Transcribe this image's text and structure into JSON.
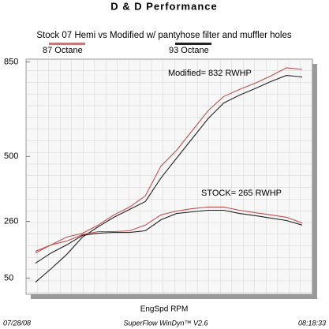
{
  "chart_data": {
    "type": "line",
    "title": "D & D Performance",
    "subtitle": "Stock 07 Hemi vs Modified w/ pantyhose filter and muffler holes",
    "x_label": "EngSpd RPM",
    "legend": [
      {
        "name": "87 Octane",
        "color": "#c87878"
      },
      {
        "name": "93 Octane",
        "color": "#222222"
      }
    ],
    "annotations": [
      "Modified= 832 RWHP",
      "STOCK= 265 RWHP"
    ],
    "footer": {
      "date": "07/28/08",
      "software": "SuperFlow WinDyn™ V2.6",
      "time": "08:18:33"
    },
    "ylim": [
      -10,
      860
    ],
    "yticks": [
      50,
      260,
      500,
      850
    ],
    "grid": true,
    "series": [
      {
        "color": "#c0504d",
        "values": [
          143,
          173,
          202,
          216,
          246,
          284,
          313,
          354,
          465,
          523,
          596,
          669,
          722,
          748,
          771,
          798,
          828,
          822
        ]
      },
      {
        "color": "#222222",
        "values": [
          35,
          85,
          138,
          202,
          240,
          275,
          304,
          333,
          421,
          494,
          567,
          640,
          698,
          727,
          751,
          777,
          800,
          794
        ]
      },
      {
        "color": "#c0504d",
        "values": [
          149,
          173,
          187,
          211,
          222,
          222,
          225,
          246,
          284,
          298,
          307,
          313,
          313,
          301,
          292,
          284,
          275,
          254
        ]
      },
      {
        "color": "#222222",
        "values": [
          105,
          143,
          173,
          208,
          216,
          219,
          219,
          225,
          266,
          289,
          295,
          301,
          301,
          289,
          281,
          272,
          263,
          246
        ]
      }
    ]
  }
}
